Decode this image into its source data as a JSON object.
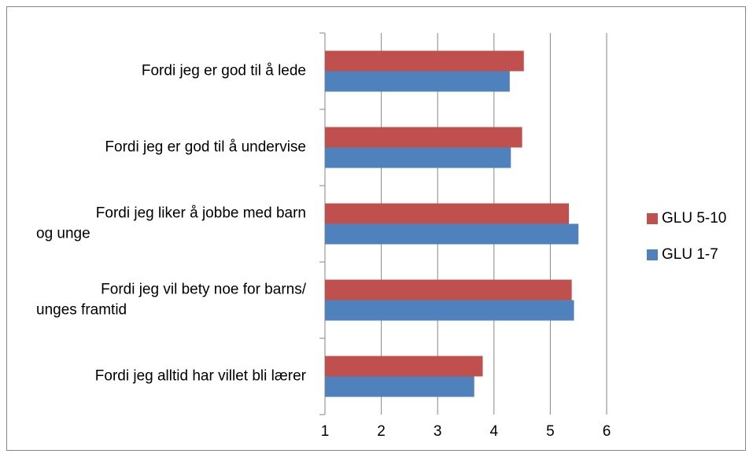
{
  "chart_data": {
    "type": "bar",
    "orientation": "horizontal",
    "categories": [
      "Fordi jeg er god til å lede",
      "Fordi jeg er god til å undervise",
      "Fordi jeg liker å jobbe med barn\nog unge",
      "Fordi jeg vil bety noe for barns/\nunges framtid",
      "Fordi jeg alltid har villet bli lærer"
    ],
    "series": [
      {
        "name": "GLU 5-10",
        "color": "#c0504d",
        "values": [
          4.53,
          4.5,
          5.33,
          5.38,
          3.8
        ]
      },
      {
        "name": "GLU 1-7",
        "color": "#4f81bd",
        "values": [
          4.28,
          4.3,
          5.5,
          5.42,
          3.65
        ]
      }
    ],
    "xlim": [
      1,
      6
    ],
    "xticks": [
      1,
      2,
      3,
      4,
      5,
      6
    ],
    "grid": true,
    "legend": "right"
  }
}
